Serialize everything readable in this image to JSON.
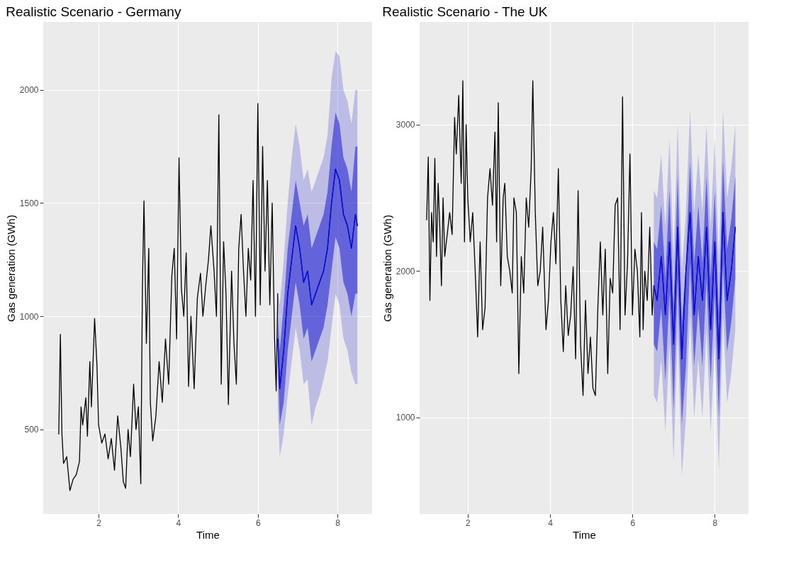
{
  "chart_data": [
    {
      "type": "line",
      "title": "Realistic Scenario - Germany",
      "xlabel": "Time",
      "ylabel": "Gas generation (GWh)",
      "xlim": [
        0.61,
        8.87
      ],
      "ylim": [
        127,
        2300
      ],
      "xticks": [
        2,
        4,
        6,
        8
      ],
      "yticks": [
        500,
        1000,
        1500,
        2000
      ],
      "grid": true,
      "series": [
        {
          "color": "#000000",
          "x": [
            1.0,
            1.04,
            1.08,
            1.12,
            1.2,
            1.28,
            1.36,
            1.44,
            1.52,
            1.56,
            1.6,
            1.68,
            1.72,
            1.78,
            1.82,
            1.9,
            1.96,
            2.0,
            2.08,
            2.16,
            2.24,
            2.32,
            2.4,
            2.48,
            2.56,
            2.62,
            2.68,
            2.74,
            2.8,
            2.88,
            2.94,
            3.0,
            3.06,
            3.1,
            3.14,
            3.2,
            3.26,
            3.3,
            3.36,
            3.44,
            3.52,
            3.6,
            3.68,
            3.76,
            3.84,
            3.9,
            3.96,
            4.02,
            4.08,
            4.14,
            4.2,
            4.26,
            4.32,
            4.4,
            4.48,
            4.56,
            4.62,
            4.7,
            4.76,
            4.82,
            4.9,
            4.96,
            5.02,
            5.08,
            5.14,
            5.2,
            5.26,
            5.34,
            5.4,
            5.46,
            5.52,
            5.58,
            5.64,
            5.7,
            5.76,
            5.82,
            5.88,
            5.94,
            6.0,
            6.06,
            6.12,
            6.18,
            6.24,
            6.3,
            6.36,
            6.42,
            6.46,
            6.5
          ],
          "values": [
            480,
            920,
            480,
            350,
            380,
            230,
            280,
            300,
            360,
            600,
            520,
            640,
            470,
            800,
            600,
            990,
            780,
            520,
            440,
            480,
            370,
            460,
            320,
            560,
            420,
            270,
            240,
            500,
            380,
            700,
            500,
            600,
            260,
            1120,
            1510,
            880,
            1300,
            620,
            450,
            560,
            800,
            620,
            900,
            700,
            1180,
            1300,
            900,
            1700,
            1120,
            1000,
            1280,
            690,
            1000,
            680,
            1080,
            1190,
            1000,
            1150,
            1250,
            1400,
            1200,
            1000,
            1890,
            700,
            1330,
            1100,
            610,
            1200,
            880,
            700,
            1300,
            1450,
            1200,
            1000,
            1300,
            1160,
            1600,
            1000,
            1940,
            1050,
            1750,
            1200,
            1600,
            1050,
            1500,
            900,
            670,
            1100
          ]
        },
        {
          "color": "#0000cc",
          "x": [
            6.5,
            6.55,
            6.65,
            6.75,
            6.85,
            6.95,
            7.05,
            7.15,
            7.25,
            7.35,
            7.45,
            7.55,
            7.65,
            7.75,
            7.85,
            7.95,
            8.05,
            8.15,
            8.25,
            8.35,
            8.45,
            8.5
          ],
          "values": [
            900,
            680,
            850,
            1100,
            1250,
            1400,
            1300,
            1150,
            1200,
            1050,
            1100,
            1150,
            1200,
            1300,
            1500,
            1650,
            1600,
            1450,
            1400,
            1300,
            1450,
            1400
          ],
          "lower": [
            600,
            380,
            480,
            650,
            800,
            950,
            850,
            700,
            720,
            520,
            600,
            650,
            720,
            800,
            950,
            1100,
            1050,
            900,
            850,
            750,
            700,
            700
          ],
          "upper": [
            1100,
            1050,
            1250,
            1500,
            1700,
            1850,
            1750,
            1600,
            1650,
            1550,
            1600,
            1650,
            1700,
            1800,
            2050,
            2170,
            2150,
            2000,
            1950,
            1850,
            2000,
            2000
          ]
        },
        {
          "color": "#0a0ad0",
          "x": [
            6.5,
            6.55,
            6.65,
            6.75,
            6.85,
            6.95,
            7.05,
            7.15,
            7.25,
            7.35,
            7.45,
            7.55,
            7.65,
            7.75,
            7.85,
            7.95,
            8.05,
            8.15,
            8.25,
            8.35,
            8.45,
            8.5
          ],
          "values": [
            900,
            680,
            850,
            1100,
            1250,
            1400,
            1300,
            1150,
            1200,
            1050,
            1100,
            1150,
            1200,
            1300,
            1500,
            1650,
            1600,
            1450,
            1400,
            1300,
            1450,
            1400
          ],
          "lower": [
            800,
            520,
            620,
            850,
            1000,
            1150,
            1050,
            900,
            950,
            800,
            850,
            900,
            950,
            1050,
            1200,
            1350,
            1300,
            1150,
            1100,
            1000,
            1100,
            1100
          ],
          "upper": [
            1000,
            850,
            1050,
            1300,
            1450,
            1600,
            1500,
            1400,
            1450,
            1300,
            1350,
            1400,
            1450,
            1550,
            1750,
            1900,
            1850,
            1700,
            1650,
            1550,
            1750,
            1750
          ]
        }
      ]
    },
    {
      "type": "line",
      "title": "Realistic Scenario - The UK",
      "xlabel": "Time",
      "ylabel": "Gas generation (GWh)",
      "xlim": [
        0.83,
        8.82
      ],
      "ylim": [
        341,
        3702
      ],
      "xticks": [
        2,
        4,
        6,
        8
      ],
      "yticks": [
        1000,
        2000,
        3000
      ],
      "grid": true,
      "series": [
        {
          "color": "#000000",
          "x": [
            1.0,
            1.04,
            1.08,
            1.12,
            1.16,
            1.2,
            1.24,
            1.28,
            1.32,
            1.36,
            1.4,
            1.44,
            1.5,
            1.56,
            1.62,
            1.68,
            1.72,
            1.78,
            1.84,
            1.88,
            1.92,
            1.96,
            2.0,
            2.06,
            2.12,
            2.18,
            2.24,
            2.3,
            2.36,
            2.42,
            2.48,
            2.54,
            2.6,
            2.66,
            2.7,
            2.74,
            2.8,
            2.86,
            2.9,
            2.96,
            3.02,
            3.08,
            3.12,
            3.18,
            3.24,
            3.3,
            3.36,
            3.42,
            3.48,
            3.54,
            3.58,
            3.64,
            3.7,
            3.76,
            3.82,
            3.9,
            3.96,
            4.02,
            4.08,
            4.14,
            4.2,
            4.26,
            4.32,
            4.38,
            4.44,
            4.5,
            4.56,
            4.62,
            4.68,
            4.74,
            4.8,
            4.86,
            4.92,
            4.98,
            5.04,
            5.1,
            5.16,
            5.22,
            5.28,
            5.34,
            5.4,
            5.46,
            5.52,
            5.58,
            5.64,
            5.7,
            5.76,
            5.82,
            5.88,
            5.94,
            6.0,
            6.06,
            6.12,
            6.18,
            6.22,
            6.26,
            6.3,
            6.36,
            6.42,
            6.48,
            6.52
          ],
          "values": [
            2350,
            2780,
            1800,
            2400,
            2200,
            2770,
            2100,
            2600,
            2300,
            1900,
            2500,
            2100,
            2250,
            2400,
            2250,
            3050,
            2800,
            3200,
            2600,
            3300,
            2200,
            3000,
            2500,
            2200,
            2400,
            2000,
            1550,
            2200,
            1600,
            1750,
            2500,
            2700,
            2450,
            2950,
            2200,
            3150,
            1900,
            2500,
            2600,
            2100,
            2000,
            1850,
            2500,
            2400,
            1300,
            2100,
            1850,
            2500,
            2300,
            2700,
            3300,
            2400,
            1900,
            2000,
            2300,
            1600,
            1800,
            2200,
            2400,
            2050,
            2700,
            1800,
            1450,
            1900,
            1560,
            1700,
            2030,
            1400,
            2550,
            1500,
            1150,
            1800,
            1300,
            1550,
            1200,
            1150,
            1750,
            2200,
            1700,
            2150,
            1300,
            1950,
            1850,
            2450,
            2500,
            1600,
            3190,
            1700,
            2050,
            2800,
            1700,
            2150,
            2000,
            1550,
            2400,
            1600,
            2000,
            1800,
            2300,
            1700,
            1900
          ]
        },
        {
          "color": "#0000cc",
          "x": [
            6.52,
            6.6,
            6.7,
            6.8,
            6.9,
            7.0,
            7.1,
            7.2,
            7.3,
            7.4,
            7.5,
            7.6,
            7.7,
            7.8,
            7.9,
            8.0,
            8.1,
            8.2,
            8.3,
            8.4,
            8.5
          ],
          "values": [
            1900,
            1800,
            2100,
            1700,
            2200,
            1500,
            2300,
            1400,
            2000,
            2400,
            1700,
            2100,
            1800,
            2300,
            1600,
            2200,
            1400,
            2400,
            1800,
            2000,
            2300
          ],
          "lower": [
            1150,
            1100,
            1400,
            900,
            1500,
            700,
            1600,
            600,
            1000,
            1700,
            1000,
            1400,
            1000,
            1600,
            900,
            1500,
            650,
            1700,
            1100,
            1300,
            1600
          ],
          "upper": [
            2550,
            2500,
            2800,
            2300,
            2900,
            2100,
            3000,
            2000,
            2400,
            3100,
            2400,
            2800,
            2400,
            3000,
            2300,
            2900,
            2050,
            3100,
            2500,
            2700,
            3000
          ]
        },
        {
          "color": "#0a0ad0",
          "x": [
            6.52,
            6.6,
            6.7,
            6.8,
            6.9,
            7.0,
            7.1,
            7.2,
            7.3,
            7.4,
            7.5,
            7.6,
            7.7,
            7.8,
            7.9,
            8.0,
            8.1,
            8.2,
            8.3,
            8.4,
            8.5
          ],
          "values": [
            1900,
            1800,
            2100,
            1700,
            2200,
            1500,
            2300,
            1400,
            2000,
            2400,
            1700,
            2100,
            1800,
            2300,
            1600,
            2200,
            1400,
            2400,
            1800,
            2000,
            2300
          ],
          "lower": [
            1500,
            1450,
            1750,
            1250,
            1850,
            1050,
            1950,
            950,
            1350,
            2050,
            1350,
            1750,
            1350,
            1950,
            1250,
            1850,
            1000,
            2050,
            1450,
            1650,
            1950
          ],
          "upper": [
            2200,
            2150,
            2450,
            1950,
            2550,
            1750,
            2650,
            1650,
            2050,
            2750,
            2050,
            2450,
            2050,
            2650,
            1950,
            2550,
            1700,
            2750,
            2150,
            2350,
            2650
          ]
        }
      ]
    }
  ]
}
